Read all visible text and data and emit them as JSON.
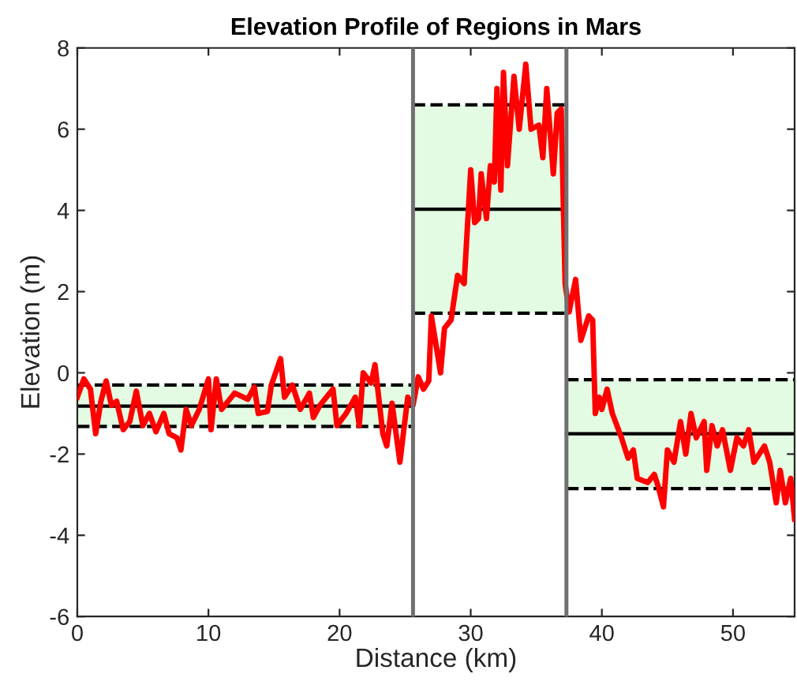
{
  "chart_data": {
    "type": "line",
    "title": "Elevation Profile of Regions in Mars",
    "xlabel": "Distance (km)",
    "ylabel": "Elevation (m)",
    "xlim": [
      0,
      54.7
    ],
    "ylim": [
      -6,
      8
    ],
    "xticks": [
      0,
      10,
      20,
      30,
      40,
      50
    ],
    "yticks": [
      {
        "value": -6,
        "label": "-6"
      },
      {
        "value": -4,
        "label": "-4"
      },
      {
        "value": -2,
        "label": "-2"
      },
      0,
      2,
      4,
      6,
      8
    ],
    "grid": false,
    "legend": false,
    "line_style": "solid",
    "marker": "none",
    "ref_lines": [
      {
        "axis": "x",
        "value": 25.6,
        "label": null,
        "color": "#707070"
      },
      {
        "axis": "x",
        "value": 37.3,
        "label": null,
        "color": "#707070"
      }
    ],
    "series": [
      {
        "color": "#000000",
        "x": [
          0,
          25.6
        ],
        "values": [
          -0.82,
          -0.82
        ],
        "lower": [
          -1.32,
          -1.32
        ],
        "upper": [
          -0.3,
          -0.3
        ]
      },
      {
        "color": "#000000",
        "x": [
          0,
          25.6
        ],
        "values": [
          -1.32,
          -1.32
        ],
        "line_style": "dashed"
      },
      {
        "color": "#000000",
        "x": [
          0,
          25.6
        ],
        "values": [
          -0.3,
          -0.3
        ],
        "line_style": "dashed"
      },
      {
        "color": "#000000",
        "x": [
          25.6,
          37.3
        ],
        "values": [
          4.03,
          4.03
        ],
        "lower": [
          1.47,
          1.47
        ],
        "upper": [
          6.6,
          6.6
        ]
      },
      {
        "color": "#000000",
        "x": [
          25.6,
          37.3
        ],
        "values": [
          1.47,
          1.47
        ],
        "line_style": "dashed"
      },
      {
        "color": "#000000",
        "x": [
          25.6,
          37.3
        ],
        "values": [
          6.6,
          6.6
        ],
        "line_style": "dashed"
      },
      {
        "color": "#000000",
        "x": [
          37.3,
          54.7
        ],
        "values": [
          -1.5,
          -1.5
        ],
        "lower": [
          -2.85,
          -2.85
        ],
        "upper": [
          -0.17,
          -0.17
        ]
      },
      {
        "color": "#000000",
        "x": [
          37.3,
          54.7
        ],
        "values": [
          -2.85,
          -2.85
        ],
        "line_style": "dashed"
      },
      {
        "color": "#000000",
        "x": [
          37.3,
          54.7
        ],
        "values": [
          -0.17,
          -0.17
        ],
        "line_style": "dashed"
      },
      {
        "color": "#ff0000",
        "x": [
          0,
          0.5,
          1,
          1.4,
          1.8,
          2.2,
          2.6,
          3,
          3.5,
          4,
          4.5,
          5,
          5.5,
          6,
          6.6,
          7,
          7.6,
          7.9,
          8.3,
          8.7,
          9.3,
          10,
          10.2,
          10.6,
          11,
          12,
          13,
          13.5,
          13.8,
          14.5,
          14.8,
          15.5,
          15.8,
          16.4,
          17,
          17.7,
          18,
          18.5,
          19.5,
          19.8,
          20.5,
          21.2,
          21.5,
          21.8,
          22.4,
          22.7,
          23.3,
          23.6,
          24,
          24.6,
          25.2,
          25.6,
          26,
          26.4,
          26.8,
          27,
          27.7,
          28,
          28.5,
          29,
          29.5,
          30,
          30.3,
          30.6,
          30.8,
          31.2,
          31.5,
          31.8,
          32,
          32.3,
          32.5,
          32.8,
          33.3,
          33.7,
          34.2,
          34.6,
          35.2,
          35.5,
          35.8,
          36.3,
          36.6,
          36.9,
          37.2,
          37.5,
          38,
          38.4,
          39,
          39.3,
          39.5,
          39.8,
          40,
          40.4,
          40.8,
          41.5,
          42,
          42.4,
          42.7,
          43.5,
          44,
          44.3,
          44.7,
          45,
          45.5,
          46,
          46.4,
          46.8,
          47.2,
          47.8,
          48,
          48.4,
          48.8,
          49.2,
          49.8,
          50.3,
          50.8,
          51.2,
          51.6,
          52.4,
          52.8,
          53.3,
          53.6,
          54,
          54.4,
          54.7
        ],
        "values": [
          -0.6,
          -0.15,
          -0.4,
          -1.5,
          -0.7,
          -0.2,
          -0.8,
          -0.7,
          -1.4,
          -1.2,
          -0.45,
          -1.3,
          -1.0,
          -1.45,
          -1.0,
          -1.5,
          -1.6,
          -1.9,
          -0.9,
          -1.3,
          -0.9,
          -0.15,
          -1.4,
          -0.15,
          -0.9,
          -0.5,
          -0.65,
          -0.35,
          -1.0,
          -0.95,
          -0.3,
          0.35,
          -0.6,
          -0.3,
          -0.9,
          -0.5,
          -1.1,
          -0.8,
          -0.4,
          -1.3,
          -1.0,
          -0.6,
          -1.3,
          0.0,
          -0.25,
          0.2,
          -1.5,
          -1.8,
          -0.75,
          -2.2,
          -0.6,
          -0.8,
          -0.1,
          -0.4,
          -0.2,
          1.4,
          0.0,
          1.1,
          1.3,
          2.4,
          2.2,
          5.0,
          3.7,
          3.8,
          4.9,
          3.8,
          5.1,
          4.7,
          7.0,
          4.5,
          7.4,
          5.1,
          7.3,
          6.0,
          7.6,
          6.0,
          6.1,
          5.3,
          7.0,
          4.9,
          6.4,
          6.5,
          2.2,
          1.5,
          2.3,
          0.8,
          1.4,
          1.3,
          -1.0,
          -0.6,
          -0.9,
          -0.4,
          -1.0,
          -1.6,
          -2.1,
          -1.9,
          -2.6,
          -2.7,
          -2.5,
          -2.8,
          -3.3,
          -1.9,
          -2.2,
          -1.2,
          -2.0,
          -1.0,
          -1.6,
          -1.2,
          -2.4,
          -1.3,
          -1.8,
          -1.4,
          -2.4,
          -1.6,
          -1.8,
          -1.4,
          -2.2,
          -1.8,
          -2.2,
          -3.2,
          -2.4,
          -3.2,
          -2.6,
          -3.6
        ]
      }
    ]
  }
}
